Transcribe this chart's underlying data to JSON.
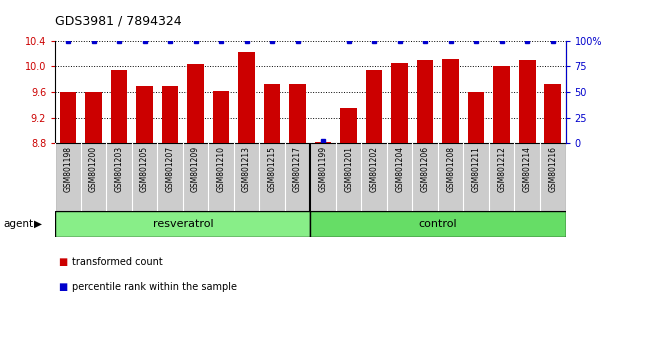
{
  "title": "GDS3981 / 7894324",
  "samples": [
    "GSM801198",
    "GSM801200",
    "GSM801203",
    "GSM801205",
    "GSM801207",
    "GSM801209",
    "GSM801210",
    "GSM801213",
    "GSM801215",
    "GSM801217",
    "GSM801199",
    "GSM801201",
    "GSM801202",
    "GSM801204",
    "GSM801206",
    "GSM801208",
    "GSM801211",
    "GSM801212",
    "GSM801214",
    "GSM801216"
  ],
  "bar_values": [
    9.6,
    9.6,
    9.95,
    9.7,
    9.7,
    10.03,
    9.61,
    10.22,
    9.73,
    9.72,
    8.82,
    9.35,
    9.94,
    10.05,
    10.1,
    10.12,
    9.6,
    10.01,
    10.1,
    9.72
  ],
  "percentile_values": [
    100,
    100,
    100,
    100,
    100,
    100,
    100,
    100,
    100,
    100,
    2,
    100,
    100,
    100,
    100,
    100,
    100,
    100,
    100,
    100
  ],
  "resveratrol_count": 10,
  "control_count": 10,
  "ylim_left": [
    8.8,
    10.4
  ],
  "ylim_right": [
    0,
    100
  ],
  "yticks_left": [
    8.8,
    9.2,
    9.6,
    10.0,
    10.4
  ],
  "yticks_right": [
    0,
    25,
    50,
    75,
    100
  ],
  "ytick_labels_right": [
    "0",
    "25",
    "50",
    "75",
    "100%"
  ],
  "bar_color": "#cc0000",
  "percentile_color": "#0000cc",
  "resveratrol_color": "#88ee88",
  "control_color": "#66dd66",
  "sample_box_color": "#cccccc",
  "agent_label": "agent",
  "resveratrol_label": "resveratrol",
  "control_label": "control",
  "legend_bar_label": "transformed count",
  "legend_pct_label": "percentile rank within the sample",
  "dotted_yticks": [
    9.2,
    9.6,
    10.0,
    10.4
  ],
  "bar_width": 0.65
}
